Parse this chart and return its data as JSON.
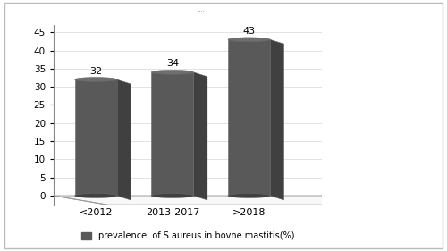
{
  "categories": [
    "<2012",
    "2013-2017",
    ">2018"
  ],
  "values": [
    32,
    34,
    43
  ],
  "bar_color_main": "#595959",
  "bar_color_top": "#6e6e6e",
  "bar_color_highlight": "#7a7a7a",
  "background_color": "#ffffff",
  "plot_bg_color": "#ffffff",
  "ylim": [
    0,
    45
  ],
  "yticks": [
    0,
    5,
    10,
    15,
    20,
    25,
    30,
    35,
    40,
    45
  ],
  "legend_label": "prevalence  of S.aureus in bovne mastitis(%)",
  "value_labels": [
    "32",
    "34",
    "43"
  ],
  "figure_title": "....",
  "outer_border_color": "#aaaaaa"
}
